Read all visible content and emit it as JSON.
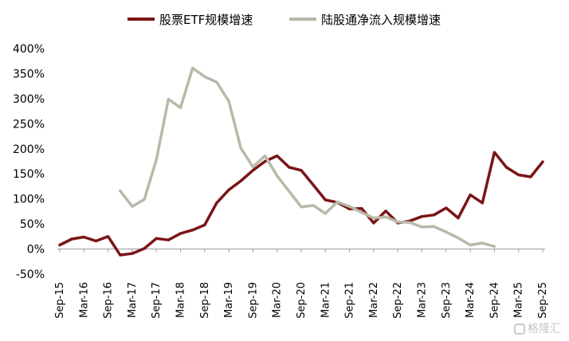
{
  "chart_data": {
    "type": "line",
    "x": [
      "Sep-15",
      "Dec-15",
      "Mar-16",
      "Jun-16",
      "Sep-16",
      "Dec-16",
      "Mar-17",
      "Jun-17",
      "Sep-17",
      "Dec-17",
      "Mar-18",
      "Jun-18",
      "Sep-18",
      "Dec-18",
      "Mar-19",
      "Jun-19",
      "Sep-19",
      "Dec-19",
      "Mar-20",
      "Jun-20",
      "Sep-20",
      "Dec-20",
      "Mar-21",
      "Jun-21",
      "Sep-21",
      "Dec-21",
      "Mar-22",
      "Jun-22",
      "Sep-22",
      "Dec-22",
      "Mar-23",
      "Jun-23",
      "Sep-23",
      "Dec-23",
      "Mar-24",
      "Jun-24",
      "Sep-24",
      "Dec-24",
      "Mar-25",
      "Jun-25",
      "Sep-25"
    ],
    "x_tick_labels": [
      "Sep-15",
      "Mar-16",
      "Sep-16",
      "Mar-17",
      "Sep-17",
      "Mar-18",
      "Sep-18",
      "Mar-19",
      "Sep-19",
      "Mar-20",
      "Sep-20",
      "Mar-21",
      "Sep-21",
      "Mar-22",
      "Sep-22",
      "Mar-23",
      "Sep-23",
      "Mar-24",
      "Sep-24",
      "Mar-25",
      "Sep-25"
    ],
    "y_tick_labels": [
      "400%",
      "350%",
      "300%",
      "250%",
      "200%",
      "150%",
      "100%",
      "50%",
      "0%",
      "-50%"
    ],
    "ylim": [
      -50,
      400
    ],
    "y_unit": "%",
    "grid": false,
    "legend_position": "top",
    "series": [
      {
        "name": "股票ETF规模增速",
        "color": "#7a1518",
        "values": [
          8,
          20,
          24,
          16,
          25,
          -12,
          -9,
          1,
          21,
          18,
          31,
          38,
          48,
          92,
          118,
          136,
          157,
          175,
          186,
          163,
          157,
          128,
          98,
          93,
          80,
          81,
          52,
          76,
          52,
          56,
          65,
          68,
          82,
          62,
          108,
          92,
          193,
          163,
          148,
          144,
          174
        ]
      },
      {
        "name": "陆股通净流入规模增速",
        "color": "#b9b9a9",
        "values": [
          null,
          null,
          null,
          null,
          null,
          116,
          85,
          99,
          178,
          299,
          282,
          361,
          344,
          333,
          295,
          201,
          164,
          186,
          146,
          115,
          84,
          87,
          71,
          94,
          85,
          73,
          62,
          64,
          54,
          53,
          44,
          45,
          34,
          22,
          8,
          12,
          5,
          null,
          null,
          null,
          null
        ]
      }
    ]
  },
  "watermark": {
    "text": "格隆汇"
  }
}
